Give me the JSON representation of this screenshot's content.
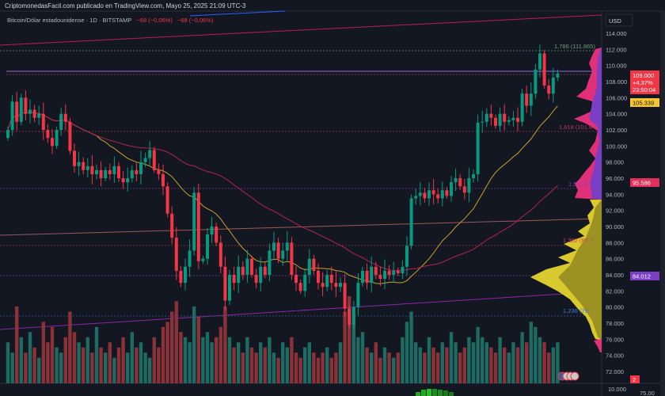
{
  "header": {
    "publisher": "CriptomonedasFacil.com publicado en TradingView.com, Mayo 25, 2025 21:09 UTC-3"
  },
  "legend": {
    "symbol": "Bitcoin/Dólar estadounidense · 1D · BITSTAMP",
    "change1": "−68 (−0,06%)",
    "change2": "−68 (−0,06%)"
  },
  "axis": {
    "currency": "USD",
    "volume_tick": "10.000",
    "lower_tick": "75.00"
  },
  "price_labels": {
    "last_price": "109.000",
    "last_change": "+4,37%",
    "countdown": "23:50:04",
    "ma_short": "105.339",
    "ma_long": "95.586",
    "poc": "84.012",
    "events_count": "2"
  },
  "fib_labels": {
    "f1786": "1,786 (111.865)",
    "f1618": "1,618 (101.8",
    "f15": "1,5 (94",
    "f1382": "1,382 (87.7",
    "f1236": "1,236 (79."
  },
  "colors": {
    "background": "#131722",
    "up": "#089981",
    "down": "#f23645",
    "ma_short": "#c9a227",
    "ma_long": "#b5224f",
    "volume_up": "#1d6b62",
    "volume_down": "#8a3238",
    "profile_up": "#d8c92e",
    "profile_down": "#e0307a",
    "profile_value_area": "#7b3fc4"
  },
  "chart_data": {
    "type": "candlestick",
    "ylim": [
      72,
      114
    ],
    "y_ticks": [
      "114.000",
      "112.000",
      "110.000",
      "108.000",
      "106.000",
      "104.000",
      "102.000",
      "100.000",
      "98.000",
      "96.000",
      "94.000",
      "92.000",
      "90.000",
      "88.000",
      "86.000",
      "84.000",
      "82.000",
      "80.000",
      "78.000",
      "76.000",
      "74.000",
      "72.000"
    ],
    "y_tick_values": [
      114,
      112,
      110,
      108,
      106,
      104,
      102,
      100,
      98,
      96,
      94,
      92,
      90,
      88,
      86,
      84,
      82,
      80,
      78,
      76,
      74,
      72
    ],
    "close": [
      102,
      105.5,
      103,
      106,
      104,
      104.5,
      103.5,
      104,
      102,
      101,
      100,
      102,
      104,
      103,
      99.4,
      97.5,
      98,
      97,
      97.5,
      96.5,
      97,
      96,
      97,
      96.5,
      97.5,
      96,
      95.5,
      96,
      97,
      96.5,
      98,
      98.5,
      99.5,
      97,
      96.5,
      95,
      91.6,
      88.6,
      84.5,
      83,
      85,
      87,
      94.2,
      85.7,
      86,
      89,
      90,
      88,
      85,
      80.8,
      84,
      83,
      85,
      84,
      86,
      84,
      83,
      85,
      84,
      87,
      88,
      86,
      87,
      88,
      84,
      83,
      82,
      84,
      86,
      84.5,
      83,
      82.5,
      84,
      83,
      82.5,
      83,
      79.8,
      77.8,
      80,
      83,
      84.5,
      83,
      85,
      84,
      83.5,
      84.5,
      84,
      84.5,
      84.2,
      85,
      87.6,
      93.5,
      93.8,
      94.2,
      93.5,
      94.5,
      94,
      93.5,
      94.5,
      93.8,
      95.5,
      96,
      95,
      94.2,
      96,
      96.5,
      102.9,
      103,
      104,
      103.5,
      102.5,
      104,
      103,
      103.2,
      103.5,
      103,
      106.5,
      105,
      106.5,
      109.5,
      111.5,
      107.5,
      106.5,
      108.5,
      109
    ],
    "volume": [
      40,
      30,
      75,
      45,
      30,
      50,
      35,
      25,
      60,
      40,
      55,
      35,
      30,
      45,
      70,
      50,
      40,
      35,
      45,
      30,
      55,
      35,
      30,
      40,
      25,
      35,
      45,
      30,
      50,
      35,
      40,
      30,
      25,
      45,
      35,
      55,
      60,
      70,
      80,
      50,
      45,
      40,
      75,
      65,
      45,
      50,
      40,
      45,
      55,
      75,
      45,
      35,
      40,
      30,
      45,
      35,
      30,
      40,
      35,
      45,
      30,
      25,
      40,
      35,
      45,
      30,
      25,
      35,
      40,
      30,
      25,
      30,
      35,
      25,
      30,
      40,
      70,
      85,
      60,
      45,
      50,
      35,
      30,
      40,
      25,
      35,
      30,
      25,
      30,
      45,
      60,
      70,
      40,
      35,
      30,
      45,
      35,
      30,
      40,
      35,
      50,
      40,
      30,
      35,
      45,
      40,
      55,
      45,
      40,
      35,
      30,
      45,
      35,
      30,
      40,
      35,
      50,
      40,
      60,
      55,
      45,
      40,
      30,
      35,
      40
    ]
  }
}
